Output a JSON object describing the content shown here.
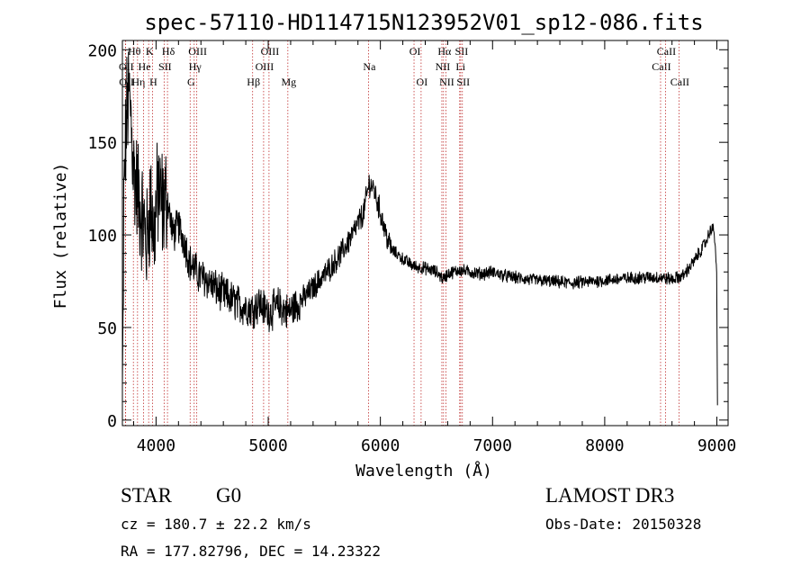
{
  "chart_data": {
    "type": "line",
    "title": "spec-57110-HD114715N123952V01_sp12-086.fits",
    "xlabel": "Wavelength (Å)",
    "ylabel": "Flux (relative)",
    "xlim": [
      3700,
      9100
    ],
    "ylim": [
      -3,
      205
    ],
    "xticks": [
      4000,
      5000,
      6000,
      7000,
      8000,
      9000
    ],
    "xtick_labels": [
      "4000",
      "5000",
      "6000",
      "7000",
      "8000",
      "9000"
    ],
    "yticks": [
      0,
      50,
      100,
      150,
      200
    ],
    "ytick_labels": [
      "0",
      "50",
      "100",
      "150",
      "200"
    ],
    "spectrum_envelope": {
      "x": [
        3700,
        3720,
        3740,
        3760,
        3780,
        3800,
        3830,
        3860,
        3890,
        3920,
        3950,
        3980,
        4020,
        4060,
        4100,
        4150,
        4200,
        4260,
        4300,
        4340,
        4380,
        4450,
        4550,
        4650,
        4750,
        4861,
        4920,
        5000,
        5100,
        5173,
        5250,
        5350,
        5450,
        5550,
        5650,
        5750,
        5850,
        5900,
        5940,
        6000,
        6050,
        6100,
        6200,
        6300,
        6400,
        6500,
        6563,
        6600,
        6700,
        6800,
        6900,
        7000,
        7100,
        7300,
        7500,
        7700,
        7900,
        8100,
        8300,
        8500,
        8600,
        8700,
        8800,
        8900,
        8960,
        8985,
        9000
      ],
      "flux": [
        80,
        135,
        168,
        175,
        160,
        135,
        125,
        115,
        105,
        95,
        120,
        100,
        125,
        115,
        120,
        100,
        105,
        95,
        85,
        82,
        78,
        76,
        70,
        66,
        62,
        60,
        63,
        58,
        62,
        58,
        62,
        68,
        75,
        82,
        90,
        100,
        112,
        128,
        125,
        112,
        100,
        92,
        87,
        83,
        82,
        80,
        76,
        79,
        81,
        80,
        79,
        80,
        78,
        76,
        75,
        74,
        75,
        76,
        77,
        77,
        76,
        78,
        86,
        96,
        105,
        96,
        75
      ]
    },
    "noise_amplitude": [
      {
        "from": 3700,
        "to": 4100,
        "amp": 28
      },
      {
        "from": 4100,
        "to": 5300,
        "amp": 9
      },
      {
        "from": 5300,
        "to": 6100,
        "amp": 6
      },
      {
        "from": 6100,
        "to": 9100,
        "amp": 3
      }
    ],
    "line_markers": [
      {
        "label": "OII",
        "wavelength": 3727,
        "row": 2
      },
      {
        "label": "OII",
        "wavelength": 3729,
        "row": 3
      },
      {
        "label": "Hθ",
        "wavelength": 3798,
        "row": 1
      },
      {
        "label": "Hη",
        "wavelength": 3835,
        "row": 3
      },
      {
        "label": "He",
        "wavelength": 3889,
        "row": 2
      },
      {
        "label": "K",
        "wavelength": 3934,
        "row": 1
      },
      {
        "label": "H",
        "wavelength": 3968,
        "row": 3
      },
      {
        "label": "SII",
        "wavelength": 4072,
        "row": 2
      },
      {
        "label": "Hδ",
        "wavelength": 4102,
        "row": 1
      },
      {
        "label": "G",
        "wavelength": 4304,
        "row": 3
      },
      {
        "label": "Hγ",
        "wavelength": 4340,
        "row": 2
      },
      {
        "label": "OIII",
        "wavelength": 4363,
        "row": 1
      },
      {
        "label": "Hβ",
        "wavelength": 4861,
        "row": 3
      },
      {
        "label": "OIII",
        "wavelength": 4959,
        "row": 2
      },
      {
        "label": "OIII",
        "wavelength": 5007,
        "row": 1
      },
      {
        "label": "Mg",
        "wavelength": 5175,
        "row": 3
      },
      {
        "label": "Na",
        "wavelength": 5894,
        "row": 2
      },
      {
        "label": "OI",
        "wavelength": 6300,
        "row": 1
      },
      {
        "label": "OI",
        "wavelength": 6363,
        "row": 3
      },
      {
        "label": "NII",
        "wavelength": 6548,
        "row": 2
      },
      {
        "label": "Hα",
        "wavelength": 6563,
        "row": 1
      },
      {
        "label": "NII",
        "wavelength": 6584,
        "row": 3
      },
      {
        "label": "Li",
        "wavelength": 6707,
        "row": 2
      },
      {
        "label": "SII",
        "wavelength": 6716,
        "row": 1
      },
      {
        "label": "SII",
        "wavelength": 6731,
        "row": 3
      },
      {
        "label": "CaII",
        "wavelength": 8498,
        "row": 2
      },
      {
        "label": "CaII",
        "wavelength": 8542,
        "row": 1
      },
      {
        "label": "CaII",
        "wavelength": 8662,
        "row": 3
      }
    ],
    "colors": {
      "spectrum": "#000000",
      "marker": "#c03030",
      "axis": "#000000"
    }
  },
  "footer": {
    "object_class": "STAR",
    "subclass": "G0",
    "survey": "LAMOST DR3",
    "redshift": "cz = 180.7 ± 22.2 km/s",
    "obs_date": "Obs-Date: 20150328",
    "coordinates": "RA = 177.82796, DEC =  14.23322"
  }
}
